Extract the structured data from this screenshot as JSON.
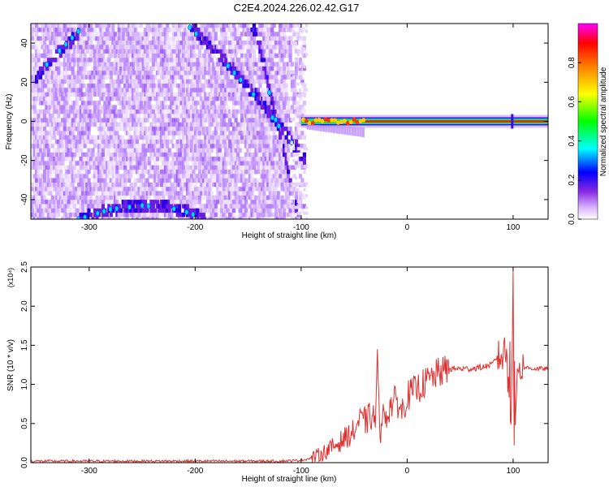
{
  "title": "C2E4.2024.226.02.42.G17",
  "chart_data": [
    {
      "type": "heatmap",
      "xlabel": "Height of straight line (km)",
      "ylabel": "Frequency (Hz)",
      "xlim": [
        -355,
        133
      ],
      "ylim": [
        -50,
        50
      ],
      "xticks": [
        -300,
        -200,
        -100,
        0,
        100
      ],
      "yticks": [
        -40,
        -20,
        0,
        20,
        40
      ],
      "xtick_labels": [
        "-300",
        "-200",
        "-100",
        "0",
        "100"
      ],
      "ytick_labels": [
        "-40",
        "-20",
        "0",
        "20",
        "40"
      ],
      "colorbar": {
        "label": "Normalized spectral amplitude",
        "range": [
          0,
          1
        ],
        "ticks": [
          0.0,
          0.2,
          0.4,
          0.6,
          0.8
        ],
        "tick_labels": [
          "0.0",
          "0.2",
          "0.4",
          "0.6",
          "0.8"
        ],
        "colors": [
          "#ffffff",
          "#d9b3ff",
          "#8a2be2",
          "#0000ff",
          "#00ffff",
          "#00ff00",
          "#ffff00",
          "#ff8000",
          "#ff0000",
          "#ff00ff"
        ]
      },
      "features": {
        "noise_region_x": [
          -355,
          -98
        ],
        "tone_frequency": 0,
        "tone_x": [
          -100,
          133
        ],
        "dark_band_1": [
          [
            -352,
            22
          ],
          [
            -330,
            35
          ],
          [
            -310,
            46
          ]
        ],
        "dark_band_2": [
          [
            -205,
            48
          ],
          [
            -175,
            32
          ],
          [
            -150,
            17
          ],
          [
            -130,
            4
          ],
          [
            -110,
            -10
          ],
          [
            -98,
            -20
          ]
        ],
        "dark_band_3": [
          [
            -148,
            50
          ],
          [
            -140,
            38
          ],
          [
            -128,
            10
          ],
          [
            -115,
            -20
          ],
          [
            -108,
            -38
          ],
          [
            -105,
            -48
          ]
        ],
        "dark_band_4": [
          [
            -310,
            -50
          ],
          [
            -280,
            -45
          ],
          [
            -250,
            -43
          ],
          [
            -215,
            -45
          ],
          [
            -190,
            -50
          ]
        ]
      }
    },
    {
      "type": "line",
      "xlabel": "Height of straight line (km)",
      "ylabel": "SNR (10 * v/v)",
      "yscale_label": "(x10⁴)",
      "xlim": [
        -355,
        133
      ],
      "ylim": [
        0,
        2.5
      ],
      "xticks": [
        -300,
        -200,
        -100,
        0,
        100
      ],
      "yticks": [
        0.0,
        0.5,
        1.0,
        1.5,
        2.0,
        2.5
      ],
      "xtick_labels": [
        "-300",
        "-200",
        "-100",
        "0",
        "100"
      ],
      "ytick_labels": [
        "0.0",
        "0.5",
        "1.0",
        "1.5",
        "2.0",
        "2.5"
      ],
      "color": "#e03030",
      "x": [
        -355,
        -300,
        -200,
        -120,
        -100,
        -90,
        -80,
        -70,
        -60,
        -50,
        -45,
        -40,
        -35,
        -30,
        -28,
        -26,
        -25,
        -22,
        -20,
        -15,
        -10,
        -5,
        0,
        5,
        10,
        15,
        20,
        25,
        30,
        40,
        50,
        60,
        70,
        80,
        85,
        90,
        95,
        98,
        100,
        102,
        104,
        106,
        110,
        120,
        133
      ],
      "y": [
        0.02,
        0.02,
        0.02,
        0.02,
        0.03,
        0.06,
        0.12,
        0.2,
        0.3,
        0.4,
        0.55,
        0.5,
        0.6,
        0.55,
        1.4,
        0.3,
        0.7,
        0.55,
        0.6,
        0.75,
        0.8,
        0.65,
        0.85,
        0.9,
        0.95,
        1.0,
        1.05,
        1.1,
        1.15,
        1.2,
        1.2,
        1.2,
        1.22,
        1.25,
        1.35,
        1.35,
        1.4,
        0.5,
        2.45,
        0.4,
        1.3,
        1.2,
        1.22,
        1.2,
        1.2
      ],
      "spikes": [
        [
          -28,
          1.45
        ],
        [
          -25,
          0.25
        ],
        [
          -40,
          0.72
        ],
        [
          100,
          2.45
        ],
        [
          101,
          0.22
        ],
        [
          97,
          1.55
        ],
        [
          95,
          0.9
        ],
        [
          92,
          1.6
        ]
      ]
    }
  ]
}
